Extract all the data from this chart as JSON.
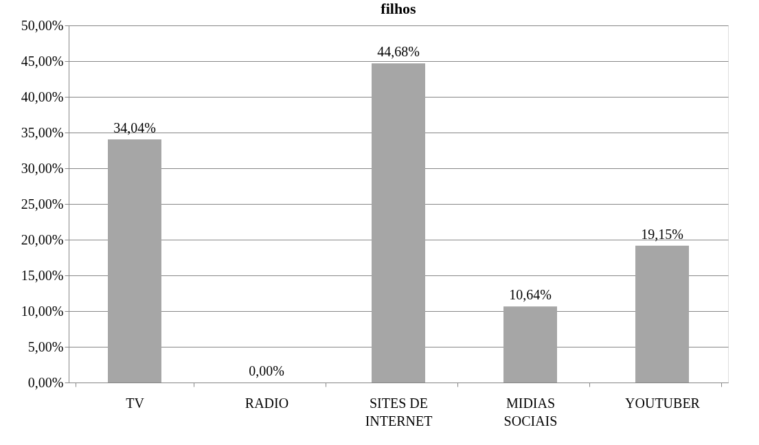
{
  "chart_data": {
    "type": "bar",
    "title": "filhos",
    "categories": [
      "TV",
      "RADIO",
      "SITES DE INTERNET",
      "MIDIAS SOCIAIS",
      "YOUTUBER"
    ],
    "values": [
      34.04,
      0,
      44.68,
      10.64,
      19.15
    ],
    "value_labels": [
      "34,04%",
      "0,00%",
      "44,68%",
      "10,64%",
      "19,15%"
    ],
    "color": "#a6a6a6",
    "ylim": [
      0,
      50
    ],
    "yticks": [
      {
        "value": 0,
        "label": "0,00%"
      },
      {
        "value": 5,
        "label": "5,00%"
      },
      {
        "value": 10,
        "label": "10,00%"
      },
      {
        "value": 15,
        "label": "15,00%"
      },
      {
        "value": 20,
        "label": "20,00%"
      },
      {
        "value": 25,
        "label": "25,00%"
      },
      {
        "value": 30,
        "label": "30,00%"
      },
      {
        "value": 35,
        "label": "35,00%"
      },
      {
        "value": 40,
        "label": "40,00%"
      },
      {
        "value": 45,
        "label": "45,00%"
      },
      {
        "value": 50,
        "label": "50,00%"
      }
    ],
    "grid": "y"
  }
}
